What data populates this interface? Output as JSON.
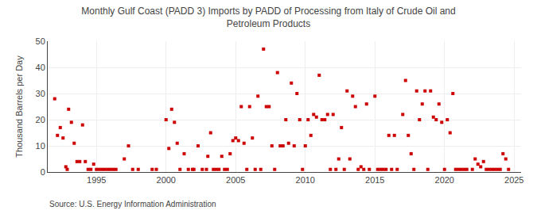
{
  "chart_data": {
    "type": "scatter",
    "title": "Monthly Gulf Coast (PADD 3) Imports by PADD of Processing from Italy of Crude Oil and\nPetroleum Products",
    "ylabel": "Thousand Barrels per Day",
    "annotations": [
      "Source: U.S. Energy Information Administration"
    ],
    "color": "#cc0000",
    "marker": "square",
    "grid": true,
    "xlim": [
      1991.5,
      2025.5
    ],
    "ylim": [
      0,
      50
    ],
    "xticks": [
      1995,
      2000,
      2005,
      2010,
      2015,
      2020,
      2025
    ],
    "yticks": [
      0,
      10,
      20,
      30,
      40,
      50
    ],
    "x": [
      1992.0,
      1992.2,
      1992.4,
      1992.6,
      1992.8,
      1992.9,
      1993.0,
      1993.2,
      1993.4,
      1993.6,
      1993.8,
      1994.0,
      1994.2,
      1994.4,
      1994.6,
      1994.8,
      1995.0,
      1995.2,
      1995.4,
      1995.6,
      1995.8,
      1996.0,
      1996.2,
      1996.4,
      1997.0,
      1997.3,
      1997.6,
      1998.0,
      1999.0,
      1999.3,
      2000.0,
      2000.2,
      2000.4,
      2000.6,
      2000.8,
      2001.0,
      2001.3,
      2001.6,
      2001.9,
      2002.0,
      2002.3,
      2002.6,
      2002.9,
      2003.0,
      2003.2,
      2003.4,
      2003.6,
      2003.8,
      2004.0,
      2004.2,
      2004.4,
      2004.6,
      2004.8,
      2005.0,
      2005.2,
      2005.4,
      2005.6,
      2005.8,
      2006.0,
      2006.2,
      2006.4,
      2006.6,
      2006.8,
      2007.0,
      2007.2,
      2007.4,
      2007.6,
      2007.8,
      2008.0,
      2008.2,
      2008.4,
      2008.6,
      2008.8,
      2009.0,
      2009.2,
      2009.4,
      2009.6,
      2009.8,
      2010.0,
      2010.2,
      2010.4,
      2010.6,
      2010.8,
      2011.0,
      2011.2,
      2011.4,
      2011.6,
      2011.8,
      2012.0,
      2012.2,
      2012.4,
      2012.6,
      2012.8,
      2013.0,
      2013.2,
      2013.4,
      2013.6,
      2013.8,
      2014.0,
      2014.2,
      2014.4,
      2014.6,
      2015.0,
      2015.2,
      2015.4,
      2015.6,
      2015.8,
      2016.0,
      2016.2,
      2016.4,
      2016.6,
      2017.0,
      2017.2,
      2017.4,
      2017.6,
      2017.8,
      2018.0,
      2018.2,
      2018.4,
      2018.6,
      2018.8,
      2019.0,
      2019.2,
      2019.4,
      2019.6,
      2019.8,
      2020.0,
      2020.2,
      2020.4,
      2020.6,
      2020.8,
      2021.0,
      2021.2,
      2021.4,
      2021.6,
      2022.0,
      2022.2,
      2022.4,
      2022.6,
      2022.8,
      2023.0,
      2023.2,
      2023.4,
      2023.6,
      2023.8,
      2024.0,
      2024.2,
      2024.4,
      2024.6
    ],
    "values": [
      28,
      14,
      17,
      13,
      2,
      1,
      24,
      19,
      11,
      4,
      4,
      18,
      4,
      1,
      1,
      3,
      1,
      1,
      1,
      1,
      1,
      1,
      1,
      1,
      5,
      10,
      1,
      1,
      1,
      1,
      20,
      9,
      24,
      19,
      11,
      1,
      7,
      1,
      1,
      1,
      10,
      1,
      1,
      6,
      15,
      1,
      1,
      1,
      6,
      1,
      1,
      7,
      12,
      13,
      12,
      25,
      11,
      1,
      25,
      13,
      1,
      29,
      1,
      47,
      25,
      25,
      10,
      1,
      38,
      10,
      10,
      20,
      11,
      34,
      10,
      30,
      20,
      1,
      10,
      20,
      14,
      22,
      21,
      37,
      20,
      20,
      22,
      1,
      22,
      1,
      5,
      17,
      1,
      31,
      5,
      29,
      25,
      1,
      2,
      1,
      26,
      1,
      29,
      1,
      1,
      1,
      1,
      14,
      1,
      14,
      1,
      22,
      35,
      14,
      7,
      1,
      31,
      20,
      26,
      31,
      1,
      31,
      21,
      20,
      26,
      19,
      1,
      20,
      15,
      30,
      1,
      1,
      1,
      1,
      1,
      1,
      5,
      3,
      2,
      4,
      1,
      1,
      1,
      1,
      1,
      1,
      7,
      5,
      1
    ]
  }
}
